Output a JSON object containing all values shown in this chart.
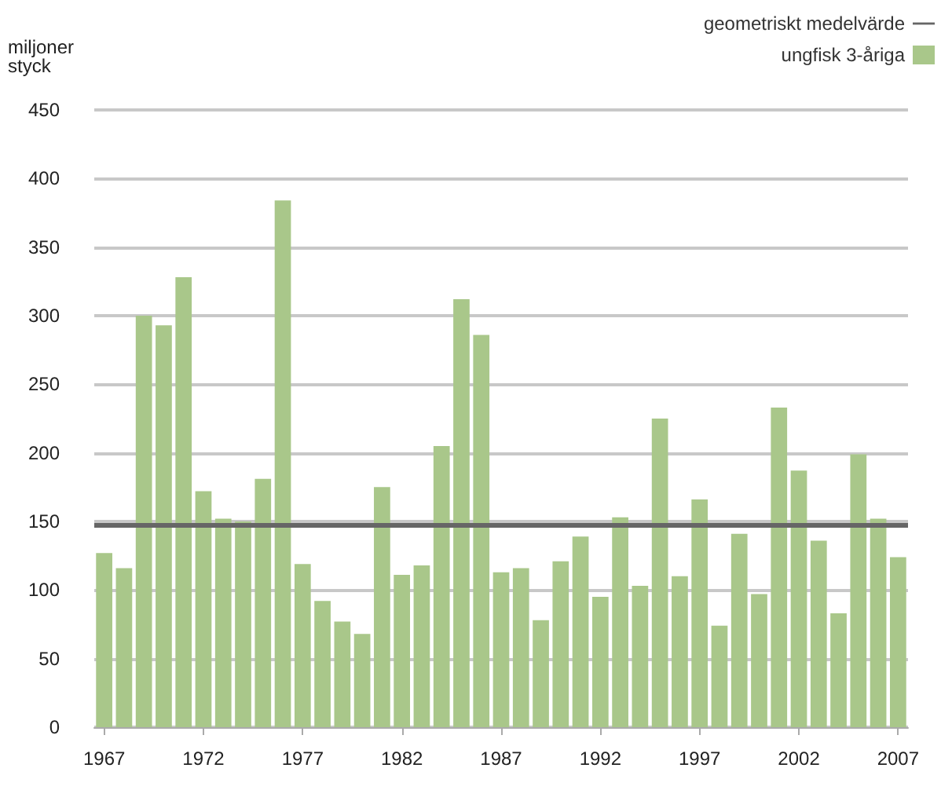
{
  "chart_data": {
    "type": "bar",
    "ylabel": "miljoner\nstyck",
    "categories": [
      "1967",
      null,
      null,
      null,
      null,
      "1972",
      null,
      null,
      null,
      null,
      "1977",
      null,
      null,
      null,
      null,
      "1982",
      null,
      null,
      null,
      null,
      "1987",
      null,
      null,
      null,
      null,
      "1992",
      null,
      null,
      null,
      null,
      "1997",
      null,
      null,
      null,
      null,
      "2002",
      null,
      null,
      null,
      null,
      "2007"
    ],
    "series": [
      {
        "name": "ungfisk 3-åriga",
        "color": "#a9c78a",
        "values": [
          127,
          116,
          300,
          293,
          328,
          172,
          152,
          150,
          181,
          384,
          119,
          92,
          77,
          68,
          175,
          111,
          118,
          205,
          312,
          286,
          113,
          116,
          78,
          121,
          139,
          95,
          153,
          103,
          225,
          110,
          166,
          74,
          141,
          97,
          233,
          187,
          136,
          83,
          199,
          152,
          124
        ]
      }
    ],
    "ylim": [
      0,
      450
    ],
    "yticks": [
      0,
      50,
      100,
      150,
      200,
      250,
      300,
      350,
      400,
      450
    ],
    "grid": "y",
    "legend": "top right",
    "ref_lines": [
      {
        "axis": "y",
        "value": 147,
        "label": "geometriskt medelvärde",
        "color": "#666666"
      }
    ]
  }
}
